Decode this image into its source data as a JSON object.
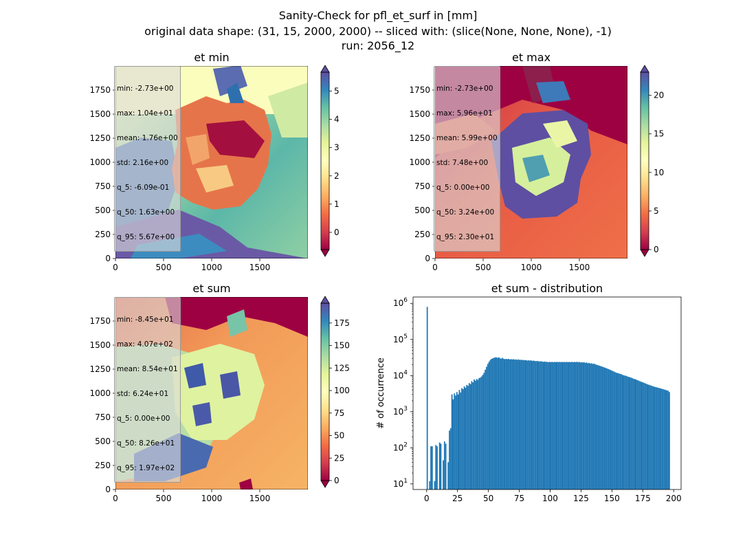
{
  "suptitle": {
    "line1": "Sanity-Check for pfl_et_surf in [mm]",
    "line2": "original data shape: (31, 15, 2000, 2000) -- sliced with: (slice(None, None, None), -1)",
    "line3": "run: 2056_12"
  },
  "colors": {
    "spectral": [
      "#9e0142",
      "#d53e4f",
      "#f46d43",
      "#fdae61",
      "#fee08b",
      "#ffffbf",
      "#e6f598",
      "#abdda4",
      "#66c2a5",
      "#3288bd",
      "#5e4fa2"
    ],
    "hist_bar": "#1f77b4"
  },
  "panels": {
    "et_min": {
      "title": "et min",
      "stats": [
        "min: -2.73e+00",
        "max: 1.04e+01",
        "mean: 1.76e+00",
        "std: 2.16e+00",
        "q_5: -6.09e-01",
        "q_50: 1.63e+00",
        "q_95: 5.67e+00"
      ],
      "colorbar_ticks": [
        "0",
        "1",
        "2",
        "3",
        "4",
        "5"
      ],
      "x_ticks": [
        "0",
        "500",
        "1000",
        "1500"
      ],
      "y_ticks": [
        "0",
        "250",
        "500",
        "750",
        "1000",
        "1250",
        "1500",
        "1750"
      ]
    },
    "et_max": {
      "title": "et max",
      "stats": [
        "min: -2.73e+00",
        "max: 5.96e+01",
        "mean: 5.99e+00",
        "std: 7.48e+00",
        "q_5: 0.00e+00",
        "q_50: 3.24e+00",
        "q_95: 2.30e+01"
      ],
      "colorbar_ticks": [
        "0",
        "5",
        "10",
        "15",
        "20"
      ],
      "x_ticks": [
        "0",
        "500",
        "1000",
        "1500"
      ],
      "y_ticks": [
        "0",
        "250",
        "500",
        "750",
        "1000",
        "1250",
        "1500",
        "1750"
      ]
    },
    "et_sum": {
      "title": "et sum",
      "stats": [
        "min: -8.45e+01",
        "max: 4.07e+02",
        "mean: 8.54e+01",
        "std: 6.24e+01",
        "q_5: 0.00e+00",
        "q_50: 8.26e+01",
        "q_95: 1.97e+02"
      ],
      "colorbar_ticks": [
        "0",
        "25",
        "50",
        "75",
        "100",
        "125",
        "150",
        "175"
      ],
      "x_ticks": [
        "0",
        "500",
        "1000",
        "1500"
      ],
      "y_ticks": [
        "0",
        "250",
        "500",
        "750",
        "1000",
        "1250",
        "1500",
        "1750"
      ]
    }
  },
  "chart_data": {
    "type": "bar",
    "title": "et sum - distribution",
    "xlabel": "",
    "ylabel": "# of occurrence",
    "yscale": "log",
    "xlim": [
      -11,
      206
    ],
    "ylim": [
      7,
      1500000
    ],
    "x_ticks": [
      0,
      25,
      50,
      75,
      100,
      125,
      150,
      175,
      200
    ],
    "y_ticks": [
      "10^1",
      "10^2",
      "10^3",
      "10^4",
      "10^5",
      "10^6"
    ],
    "bin_width": 1,
    "bins": [
      [
        0,
        800000
      ],
      [
        2,
        12
      ],
      [
        3,
        110
      ],
      [
        4,
        110
      ],
      [
        6,
        12
      ],
      [
        7,
        120
      ],
      [
        8,
        110
      ],
      [
        10,
        140
      ],
      [
        11,
        130
      ],
      [
        13,
        45
      ],
      [
        14,
        150
      ],
      [
        15,
        130
      ],
      [
        17,
        40
      ],
      [
        18,
        300
      ],
      [
        19,
        350
      ],
      [
        20,
        3000
      ],
      [
        21,
        2200
      ],
      [
        22,
        3200
      ],
      [
        23,
        2800
      ],
      [
        24,
        3500
      ],
      [
        25,
        3000
      ],
      [
        26,
        4000
      ],
      [
        27,
        3400
      ],
      [
        28,
        4500
      ],
      [
        29,
        4200
      ],
      [
        30,
        5000
      ],
      [
        31,
        4600
      ],
      [
        32,
        5500
      ],
      [
        33,
        5200
      ],
      [
        34,
        6200
      ],
      [
        35,
        5800
      ],
      [
        36,
        7000
      ],
      [
        37,
        6500
      ],
      [
        38,
        7800
      ],
      [
        39,
        7200
      ],
      [
        40,
        8000
      ],
      [
        41,
        7600
      ],
      [
        42,
        8500
      ],
      [
        43,
        8800
      ],
      [
        44,
        9500
      ],
      [
        45,
        10500
      ],
      [
        46,
        12000
      ],
      [
        47,
        14500
      ],
      [
        48,
        17500
      ],
      [
        49,
        21000
      ],
      [
        50,
        24000
      ],
      [
        51,
        27000
      ],
      [
        52,
        29000
      ],
      [
        53,
        30000
      ],
      [
        54,
        31000
      ],
      [
        55,
        32000
      ],
      [
        56,
        32000
      ],
      [
        57,
        31000
      ],
      [
        58,
        32000
      ],
      [
        59,
        30000
      ],
      [
        60,
        29500
      ],
      [
        61,
        31000
      ],
      [
        62,
        29000
      ],
      [
        63,
        28500
      ],
      [
        64,
        29000
      ],
      [
        65,
        28500
      ],
      [
        66,
        29000
      ],
      [
        67,
        28000
      ],
      [
        68,
        28500
      ],
      [
        69,
        28000
      ],
      [
        70,
        28500
      ],
      [
        71,
        27500
      ],
      [
        72,
        28000
      ],
      [
        73,
        27500
      ],
      [
        74,
        28000
      ],
      [
        75,
        27000
      ],
      [
        76,
        27500
      ],
      [
        77,
        27000
      ],
      [
        78,
        27000
      ],
      [
        79,
        26500
      ],
      [
        80,
        27000
      ],
      [
        81,
        26000
      ],
      [
        82,
        26500
      ],
      [
        83,
        26000
      ],
      [
        84,
        26500
      ],
      [
        85,
        25500
      ],
      [
        86,
        26000
      ],
      [
        87,
        25500
      ],
      [
        88,
        25000
      ],
      [
        89,
        25500
      ],
      [
        90,
        25000
      ],
      [
        91,
        24500
      ],
      [
        92,
        25000
      ],
      [
        93,
        24500
      ],
      [
        94,
        24000
      ],
      [
        95,
        24500
      ],
      [
        96,
        24000
      ],
      [
        97,
        24000
      ],
      [
        98,
        23500
      ],
      [
        99,
        24000
      ],
      [
        100,
        23500
      ],
      [
        101,
        24000
      ],
      [
        102,
        23500
      ],
      [
        103,
        24000
      ],
      [
        104,
        23500
      ],
      [
        105,
        24000
      ],
      [
        106,
        23500
      ],
      [
        107,
        24000
      ],
      [
        108,
        23500
      ],
      [
        109,
        24000
      ],
      [
        110,
        23500
      ],
      [
        111,
        24000
      ],
      [
        112,
        23500
      ],
      [
        113,
        24000
      ],
      [
        114,
        23500
      ],
      [
        115,
        24000
      ],
      [
        116,
        23500
      ],
      [
        117,
        24000
      ],
      [
        118,
        23500
      ],
      [
        119,
        24000
      ],
      [
        120,
        23500
      ],
      [
        121,
        24000
      ],
      [
        122,
        23500
      ],
      [
        123,
        24000
      ],
      [
        124,
        23000
      ],
      [
        125,
        23500
      ],
      [
        126,
        23000
      ],
      [
        127,
        23500
      ],
      [
        128,
        22500
      ],
      [
        129,
        23000
      ],
      [
        130,
        22000
      ],
      [
        131,
        22500
      ],
      [
        132,
        21500
      ],
      [
        133,
        22000
      ],
      [
        134,
        21000
      ],
      [
        135,
        21500
      ],
      [
        136,
        20500
      ],
      [
        137,
        20000
      ],
      [
        138,
        19500
      ],
      [
        139,
        19000
      ],
      [
        140,
        18500
      ],
      [
        141,
        18000
      ],
      [
        142,
        17500
      ],
      [
        143,
        17000
      ],
      [
        144,
        16500
      ],
      [
        145,
        16000
      ],
      [
        146,
        15500
      ],
      [
        147,
        15000
      ],
      [
        148,
        14500
      ],
      [
        149,
        14000
      ],
      [
        150,
        13500
      ],
      [
        151,
        13000
      ],
      [
        152,
        12500
      ],
      [
        153,
        12000
      ],
      [
        154,
        11800
      ],
      [
        155,
        11500
      ],
      [
        156,
        11200
      ],
      [
        157,
        11000
      ],
      [
        158,
        10500
      ],
      [
        159,
        10200
      ],
      [
        160,
        10000
      ],
      [
        161,
        9800
      ],
      [
        162,
        9500
      ],
      [
        163,
        9200
      ],
      [
        164,
        9000
      ],
      [
        165,
        8800
      ],
      [
        166,
        8500
      ],
      [
        167,
        8200
      ],
      [
        168,
        8000
      ],
      [
        169,
        7800
      ],
      [
        170,
        7500
      ],
      [
        171,
        7300
      ],
      [
        172,
        7000
      ],
      [
        173,
        6800
      ],
      [
        174,
        6600
      ],
      [
        175,
        6400
      ],
      [
        176,
        6200
      ],
      [
        177,
        6000
      ],
      [
        178,
        5800
      ],
      [
        179,
        5600
      ],
      [
        180,
        5500
      ],
      [
        181,
        5300
      ],
      [
        182,
        5200
      ],
      [
        183,
        5000
      ],
      [
        184,
        4900
      ],
      [
        185,
        4800
      ],
      [
        186,
        4700
      ],
      [
        187,
        4600
      ],
      [
        188,
        4500
      ],
      [
        189,
        4400
      ],
      [
        190,
        4300
      ],
      [
        191,
        4200
      ],
      [
        192,
        4100
      ],
      [
        193,
        4000
      ],
      [
        194,
        3900
      ],
      [
        195,
        3800
      ],
      [
        196,
        3500
      ]
    ]
  }
}
